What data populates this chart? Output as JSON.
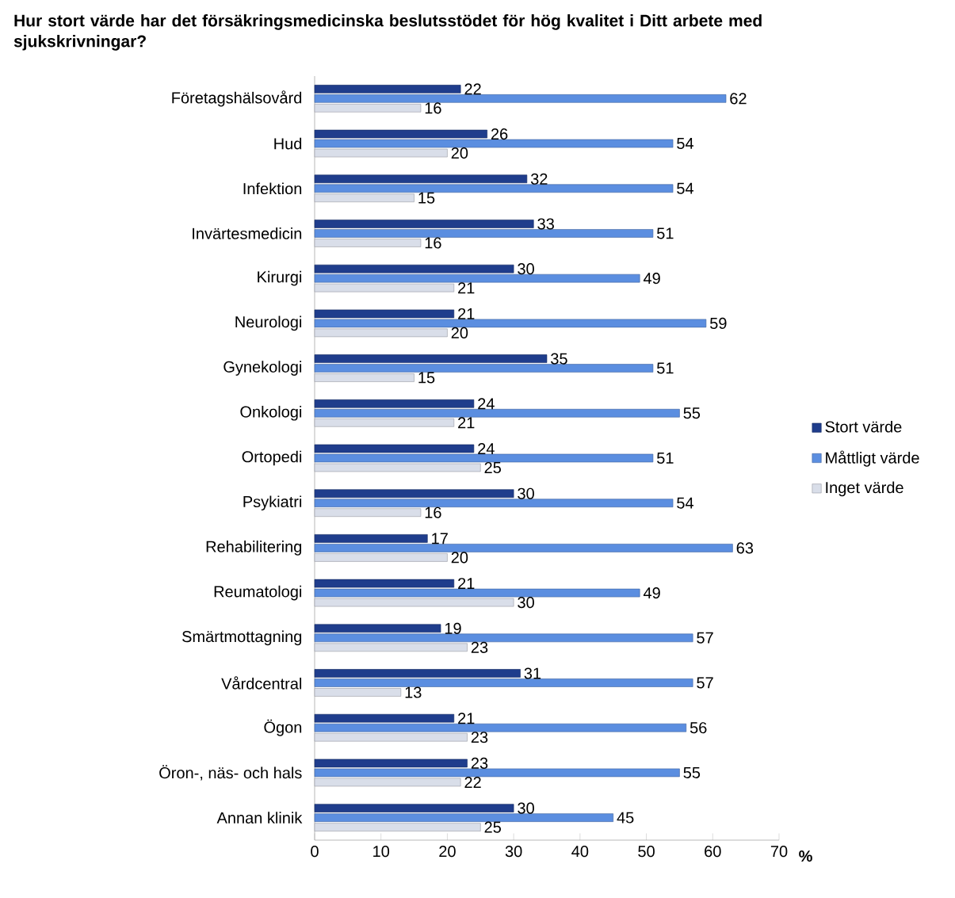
{
  "chart_data": {
    "type": "bar",
    "orientation": "horizontal",
    "title": "Hur stort värde har det försäkringsmedicinska beslutsstödet för hög kvalitet i Ditt arbete med sjukskrivningar?",
    "categories": [
      "Företagshälsovård",
      "Hud",
      "Infektion",
      "Invärtesmedicin",
      "Kirurgi",
      "Neurologi",
      "Gynekologi",
      "Onkologi",
      "Ortopedi",
      "Psykiatri",
      "Rehabilitering",
      "Reumatologi",
      "Smärtmottagning",
      "Vårdcentral",
      "Ögon",
      "Öron-, näs- och hals",
      "Annan klinik"
    ],
    "series": [
      {
        "name": "Stort värde",
        "color": "#1f3d8c",
        "values": [
          22,
          26,
          32,
          33,
          30,
          21,
          35,
          24,
          24,
          30,
          17,
          21,
          19,
          31,
          21,
          23,
          30
        ]
      },
      {
        "name": "Måttligt värde",
        "color": "#5b8ee0",
        "values": [
          62,
          54,
          54,
          51,
          49,
          59,
          51,
          55,
          51,
          54,
          63,
          49,
          57,
          57,
          56,
          55,
          45
        ]
      },
      {
        "name": "Inget värde",
        "color": "#d9dee9",
        "values": [
          16,
          20,
          15,
          16,
          21,
          20,
          15,
          21,
          25,
          16,
          20,
          30,
          23,
          13,
          23,
          22,
          25
        ]
      }
    ],
    "xlim": [
      0,
      70
    ],
    "xticks": [
      0,
      10,
      20,
      30,
      40,
      50,
      60,
      70
    ],
    "xlabel": "%",
    "data_labels": true,
    "legend": "right"
  }
}
